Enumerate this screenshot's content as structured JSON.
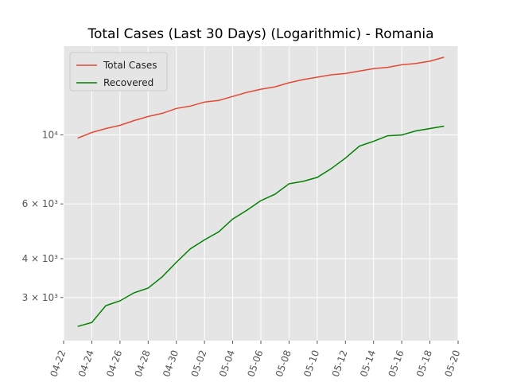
{
  "chart_data": {
    "type": "line",
    "title": "Total Cases (Last 30 Days) (Logarithmic) - Romania",
    "x": [
      "04-23",
      "04-24",
      "04-25",
      "04-26",
      "04-27",
      "04-28",
      "04-29",
      "04-30",
      "05-01",
      "05-02",
      "05-03",
      "05-04",
      "05-05",
      "05-06",
      "05-07",
      "05-08",
      "05-09",
      "05-10",
      "05-11",
      "05-12",
      "05-13",
      "05-14",
      "05-15",
      "05-16",
      "05-17",
      "05-18",
      "05-19"
    ],
    "series": [
      {
        "name": "Total Cases",
        "color": "#e24a33",
        "values": [
          9766,
          10180,
          10486,
          10738,
          11126,
          11463,
          11738,
          12162,
          12381,
          12755,
          12908,
          13299,
          13702,
          14033,
          14282,
          14715,
          15070,
          15336,
          15607,
          15755,
          16056,
          16342,
          16497,
          16812,
          16972,
          17263,
          17782
        ]
      },
      {
        "name": "Recovered",
        "color": "#008000",
        "values": [
          2421,
          2494,
          2825,
          2927,
          3107,
          3219,
          3498,
          3893,
          4305,
          4597,
          4877,
          5364,
          5726,
          6146,
          6446,
          6964,
          7089,
          7302,
          7794,
          8420,
          9203,
          9537,
          9941,
          10000,
          10301,
          10486,
          10674
        ]
      }
    ],
    "xlim": [
      "04-22",
      "05-20"
    ],
    "xticks": [
      "04-22",
      "04-24",
      "04-26",
      "04-28",
      "04-30",
      "05-02",
      "05-04",
      "05-06",
      "05-08",
      "05-10",
      "05-12",
      "05-14",
      "05-16",
      "05-18",
      "05-20"
    ],
    "ylim": [
      2180,
      19300
    ],
    "log_y": true,
    "yticks": [
      {
        "value": 3000,
        "label": "3 × 10³"
      },
      {
        "value": 4000,
        "label": "4 × 10³"
      },
      {
        "value": 6000,
        "label": "6 × 10³"
      },
      {
        "value": 10000,
        "label": "10⁴"
      }
    ],
    "grid": true,
    "legend": "upper left"
  }
}
